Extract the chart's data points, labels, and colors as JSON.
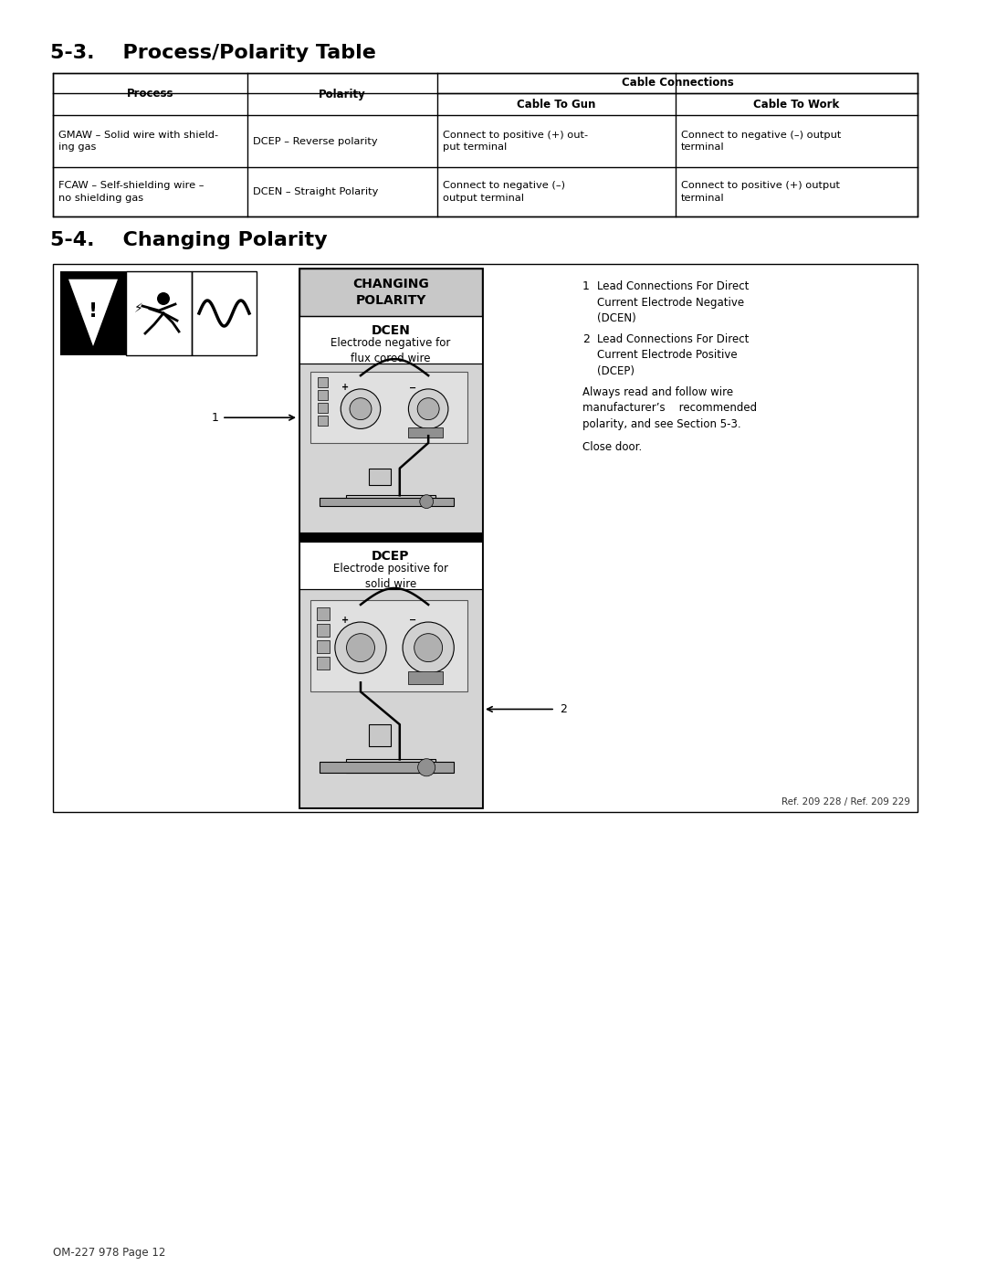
{
  "title_53": "5-3.    Process/Polarity Table",
  "title_54": "5-4.    Changing Polarity",
  "col_headers_row1_right": "Cable Connections",
  "col_headers": [
    "Process",
    "Polarity",
    "Cable To Gun",
    "Cable To Work"
  ],
  "table_rows": [
    [
      "GMAW – Solid wire with shield-\ning gas",
      "DCEP – Reverse polarity",
      "Connect to positive (+) out-\nput terminal",
      "Connect to negative (–) output\nterminal"
    ],
    [
      "FCAW – Self-shielding wire –\nno shielding gas",
      "DCEN – Straight Polarity",
      "Connect to negative (–)\noutput terminal",
      "Connect to positive (+) output\nterminal"
    ]
  ],
  "dcen_label": "DCEN",
  "dcen_sublabel": "Electrode negative for\nflux cored wire",
  "dcep_label": "DCEP",
  "dcep_sublabel": "Electrode positive for\nsolid wire",
  "changing_polarity_header": "CHANGING\nPOLARITY",
  "note1_text": "Lead Connections For Direct\nCurrent Electrode Negative\n(DCEN)",
  "note2_text": "Lead Connections For Direct\nCurrent Electrode Positive\n(DCEP)",
  "note3_text": "Always read and follow wire\nmanufacturer’s    recommended\npolarity, and see Section 5-3.",
  "note4_text": "Close door.",
  "ref_text": "Ref. 209 228 / Ref. 209 229",
  "footer_text": "OM-227 978 Page 12",
  "bg_color": "#ffffff",
  "text_color": "#000000",
  "diagram_bg": "#d4d4d4",
  "header_bg": "#c8c8c8"
}
